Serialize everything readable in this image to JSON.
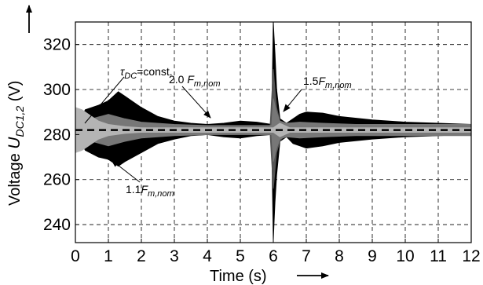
{
  "chart_data": {
    "type": "line",
    "xlabel": "Time (s)",
    "ylabel": {
      "prefix": "Voltage ",
      "symbol": "U",
      "subscript": "DC1,2",
      "unit": " (V)"
    },
    "xlim": [
      0,
      12
    ],
    "ylim": [
      232,
      330
    ],
    "xticks": [
      0,
      1,
      2,
      3,
      4,
      5,
      6,
      7,
      8,
      9,
      10,
      11,
      12
    ],
    "yticks": [
      240,
      260,
      280,
      300,
      320
    ],
    "grid": true,
    "reference_line": 282,
    "series": [
      {
        "name": "1.1F_m,nom",
        "color": "#000000",
        "envelope": {
          "t": [
            0.0,
            0.3,
            0.7,
            1.0,
            1.3,
            1.5,
            2.0,
            2.5,
            3.0,
            3.5,
            4.0,
            4.5,
            5.0,
            5.5,
            5.95,
            6.0,
            6.02,
            6.05,
            6.1,
            6.2,
            6.4,
            6.6,
            6.8,
            7.0,
            7.5,
            8.0,
            9.0,
            10.0,
            11.0,
            12.0
          ],
          "upper": [
            282,
            291,
            293,
            295,
            299,
            297,
            292,
            288,
            286,
            285,
            284.5,
            285,
            286,
            285.5,
            284.5,
            330,
            324,
            316,
            300,
            287,
            285,
            287,
            289,
            290,
            289.5,
            288,
            286.5,
            285.5,
            285,
            284.5
          ],
          "lower": [
            282,
            273,
            270,
            269,
            266,
            268,
            272,
            276,
            278,
            279.5,
            280,
            279,
            278.5,
            279.5,
            280,
            233,
            240,
            250,
            262,
            277,
            279,
            276,
            275,
            274,
            275,
            276.5,
            278,
            279,
            279.5,
            280
          ]
        }
      },
      {
        "name": "1.5F_m,nom",
        "color": "#555555",
        "envelope": {
          "t": [
            0.0,
            1.0,
            2.0,
            3.0,
            4.0,
            5.0,
            5.9,
            6.0,
            6.05,
            6.1,
            6.2,
            6.3,
            6.6,
            7.0,
            8.0,
            10.0,
            12.0
          ],
          "upper": [
            284,
            284,
            284,
            283.5,
            283,
            283,
            283,
            309,
            300,
            292,
            286,
            284,
            284.5,
            284,
            283.5,
            283,
            283
          ],
          "lower": [
            280,
            280,
            280,
            280.5,
            281,
            281,
            281,
            256,
            264,
            272,
            277,
            279,
            279.5,
            280,
            280.5,
            281,
            281
          ]
        }
      },
      {
        "name": "2.0F_m,nom",
        "color": "#777777",
        "envelope": {
          "t": [
            0.0,
            0.5,
            1.0,
            1.5,
            2.0,
            3.0,
            4.0,
            5.0,
            5.95,
            6.0,
            6.1,
            6.2,
            6.4,
            6.8,
            7.5,
            8.5,
            10.0,
            12.0
          ],
          "upper": [
            286,
            287,
            289,
            287,
            285.5,
            284.5,
            284,
            284,
            284,
            296,
            290,
            286,
            285,
            285.5,
            285,
            284.5,
            284.5,
            284.5
          ],
          "lower": [
            278,
            277,
            275,
            277,
            278.5,
            279.5,
            280,
            280,
            280,
            268,
            274,
            278,
            279,
            278.5,
            279,
            279.5,
            279.5,
            279.5
          ]
        }
      },
      {
        "name": "τ_DC=const.",
        "color": "#b4b4b4",
        "envelope": {
          "t": [
            0.0,
            0.2,
            0.4,
            0.7,
            1.0,
            1.5,
            2.0,
            3.0,
            6.0,
            6.2,
            6.5,
            12.0
          ],
          "upper": [
            292,
            291,
            289,
            286,
            284.5,
            283.5,
            283,
            283,
            283,
            285,
            283,
            283
          ],
          "lower": [
            272,
            273,
            275,
            278,
            279.5,
            280.5,
            281,
            281,
            281,
            279,
            281,
            281
          ]
        }
      }
    ],
    "annotations": [
      {
        "symbol": "τ",
        "sub": "DC",
        "suffix": "=const."
      },
      {
        "prefix": "2.0 ",
        "symbol": "F",
        "sub": "m,nom"
      },
      {
        "prefix": "1.5",
        "symbol": "F",
        "sub": "m,nom"
      },
      {
        "prefix": "1.1",
        "symbol": "F",
        "sub": "m,nom"
      }
    ]
  }
}
